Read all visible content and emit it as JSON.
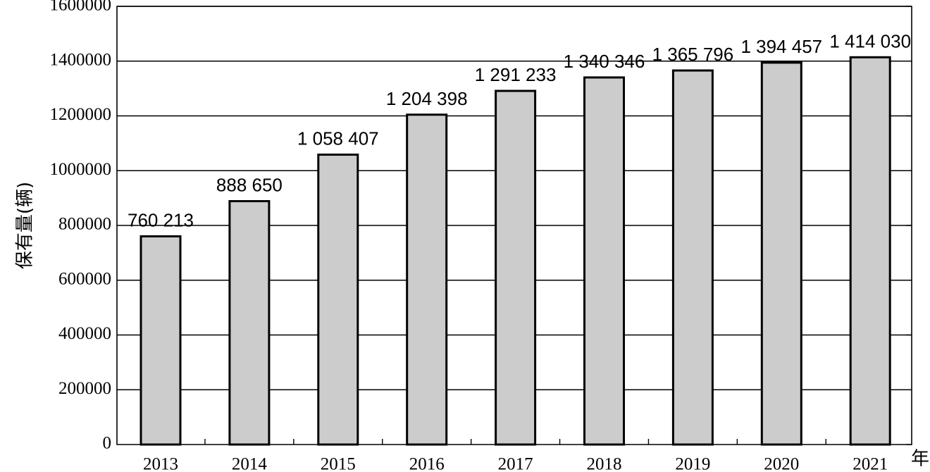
{
  "chart_data": {
    "type": "bar",
    "categories": [
      "2013",
      "2014",
      "2015",
      "2016",
      "2017",
      "2018",
      "2019",
      "2020",
      "2021"
    ],
    "values": [
      760213,
      888650,
      1058407,
      1204398,
      1291233,
      1340346,
      1365796,
      1394457,
      1414030
    ],
    "data_labels": [
      "760 213",
      "888 650",
      "1 058 407",
      "1 204 398",
      "1 291 233",
      "1 340 346",
      "1 365 796",
      "1 394 457",
      "1 414 030"
    ],
    "ylabel": "保有量(辆)",
    "xlabel": "年",
    "ylim": [
      0,
      1600000
    ],
    "yticks": [
      0,
      200000,
      400000,
      600000,
      800000,
      1000000,
      1200000,
      1400000,
      1600000
    ],
    "ytick_labels": [
      "0",
      "200000",
      "400000",
      "600000",
      "800000",
      "1000000",
      "1200000",
      "1400000",
      "1600000"
    ],
    "grid": true,
    "colors": {
      "bar_fill": "#cccccc",
      "bar_stroke": "#000000"
    }
  }
}
